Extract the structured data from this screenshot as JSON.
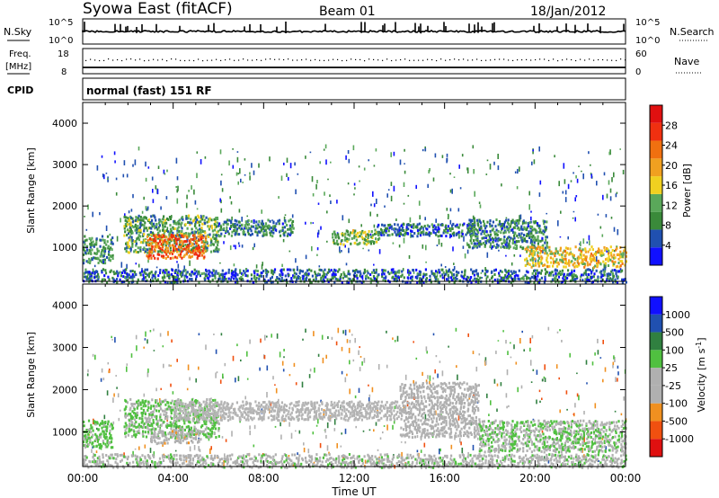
{
  "header": {
    "station": "Syowa East (fitACF)",
    "beam": "Beam 01",
    "date": "18/Jan/2012"
  },
  "nsky_panel": {
    "left_label": "N.Sky",
    "right_label": "N.Search",
    "left_ticks": [
      "10^5",
      "10^0"
    ],
    "right_ticks": [
      "10^5",
      "10^0"
    ],
    "right_legend_style": "dotted"
  },
  "freq_panel": {
    "left_label_lines": [
      "Freq.",
      "[MHz]"
    ],
    "left_ticks": [
      "18",
      "8"
    ],
    "right_ticks": [
      "60",
      "0"
    ],
    "right_label": "Nave",
    "right_legend_style": "dotted"
  },
  "cpid_panel": {
    "label": "CPID",
    "text": "normal (fast) 151 RF"
  },
  "time_axis": {
    "label": "Time UT",
    "ticks": [
      "00:00",
      "04:00",
      "08:00",
      "12:00",
      "16:00",
      "20:00",
      "00:00"
    ]
  },
  "colors": {
    "power_scale": [
      "#1010ff",
      "#2050b0",
      "#3a8a3a",
      "#5aa85a",
      "#f0d020",
      "#f0a020",
      "#f07010",
      "#f03010",
      "#e01010"
    ],
    "velocity_scale": [
      "#e01010",
      "#f05010",
      "#f09020",
      "#b0b0b0",
      "#b0b0b0",
      "#50c040",
      "#308040",
      "#2050b0",
      "#1010ff"
    ],
    "velocity_ground": "#b4b4b4"
  },
  "chart_data": [
    {
      "type": "heatmap",
      "title": "",
      "parameter": "Power",
      "xlabel": "",
      "ylabel": "Slant Range [km]",
      "xlim_hours": [
        0,
        24
      ],
      "ylim": [
        180,
        4500
      ],
      "y_ticks": [
        "1000",
        "2000",
        "3000",
        "4000"
      ],
      "y_tick_values": [
        1000,
        2000,
        3000,
        4000
      ],
      "colorbar": {
        "label": "Power [dB]",
        "ticks": [
          "4",
          "8",
          "12",
          "16",
          "20",
          "24",
          "28"
        ],
        "range": [
          0,
          30
        ]
      },
      "features": [
        {
          "t_start": 0.0,
          "t_end": 1.3,
          "r_start": 650,
          "r_end": 1300,
          "value": 8
        },
        {
          "t_start": 1.8,
          "t_end": 6.0,
          "r_start": 900,
          "r_end": 1800,
          "value": 10
        },
        {
          "t_start": 2.8,
          "t_end": 5.4,
          "r_start": 750,
          "r_end": 1350,
          "value": 22
        },
        {
          "t_start": 6.0,
          "t_end": 9.3,
          "r_start": 1300,
          "r_end": 1700,
          "value": 8
        },
        {
          "t_start": 11.0,
          "t_end": 13.2,
          "r_start": 1100,
          "r_end": 1450,
          "value": 12
        },
        {
          "t_start": 13.0,
          "t_end": 17.3,
          "r_start": 1300,
          "r_end": 1600,
          "value": 6
        },
        {
          "t_start": 17.0,
          "t_end": 20.5,
          "r_start": 1000,
          "r_end": 1700,
          "value": 8
        },
        {
          "t_start": 19.5,
          "t_end": 24.0,
          "r_start": 550,
          "r_end": 1050,
          "value": 16
        },
        {
          "t_start": 0.0,
          "t_end": 24.0,
          "r_start": 180,
          "r_end": 500,
          "value": 6
        }
      ]
    },
    {
      "type": "heatmap",
      "title": "",
      "parameter": "Velocity",
      "xlabel": "Time UT",
      "ylabel": "Slant Range [km]",
      "xlim_hours": [
        0,
        24
      ],
      "ylim": [
        180,
        4500
      ],
      "y_ticks": [
        "1000",
        "2000",
        "3000",
        "4000"
      ],
      "y_tick_values": [
        1000,
        2000,
        3000,
        4000
      ],
      "colorbar": {
        "label": "Velocity [m s^-1]",
        "ticks": [
          "-1000",
          "-500",
          "-100",
          "-25",
          "25",
          "100",
          "500",
          "1000"
        ],
        "range": [
          -1200,
          1200
        ]
      },
      "features": [
        {
          "t_start": 0.0,
          "t_end": 1.3,
          "r_start": 650,
          "r_end": 1300,
          "value": 200
        },
        {
          "t_start": 1.8,
          "t_end": 6.0,
          "r_start": 900,
          "r_end": 1800,
          "value": 150
        },
        {
          "t_start": 3.0,
          "t_end": 5.2,
          "r_start": 750,
          "r_end": 1050,
          "value": -300
        },
        {
          "t_start": 4.0,
          "t_end": 14.0,
          "r_start": 1300,
          "r_end": 1750,
          "value": 0
        },
        {
          "t_start": 14.0,
          "t_end": 17.5,
          "r_start": 900,
          "r_end": 2200,
          "value": -80
        },
        {
          "t_start": 17.5,
          "t_end": 24.0,
          "r_start": 550,
          "r_end": 1300,
          "value": 120
        },
        {
          "t_start": 0.0,
          "t_end": 24.0,
          "r_start": 180,
          "r_end": 500,
          "value": 50
        }
      ]
    }
  ]
}
